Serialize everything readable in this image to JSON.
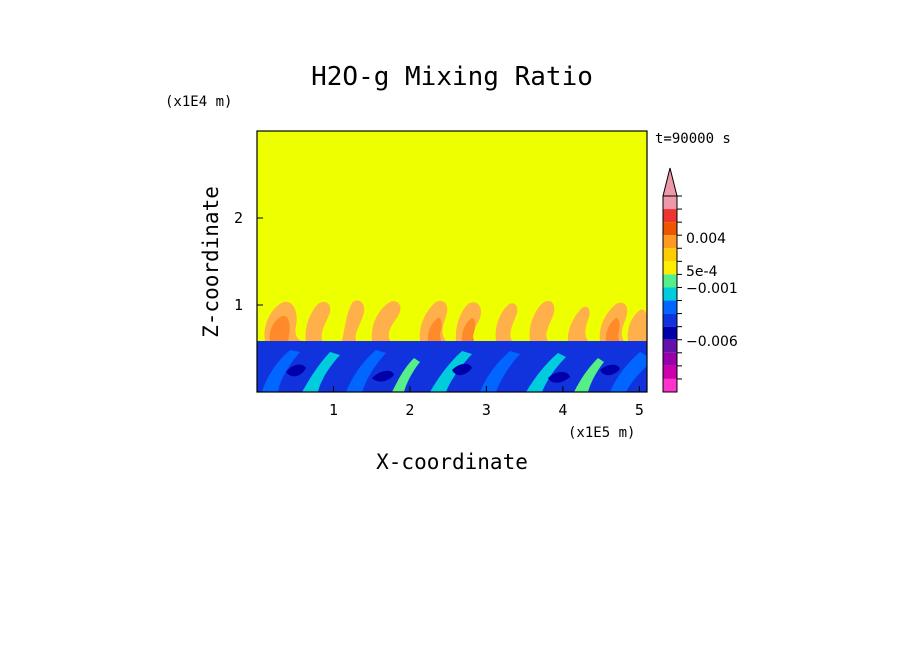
{
  "chart_data": {
    "type": "heatmap",
    "title": "H2O-g Mixing Ratio",
    "xlabel": "X-coordinate",
    "ylabel": "Z-coordinate",
    "x_scale_label": "(x1E5 m)",
    "y_scale_label": "(x1E4 m)",
    "time_label": "t=90000 s",
    "xlim": [
      0,
      5.1
    ],
    "ylim": [
      0,
      3
    ],
    "x_ticks": [
      {
        "value": 1,
        "label": "1"
      },
      {
        "value": 2,
        "label": "2"
      },
      {
        "value": 3,
        "label": "3"
      },
      {
        "value": 4,
        "label": "4"
      },
      {
        "value": 5,
        "label": "5"
      }
    ],
    "y_ticks": [
      {
        "value": 1,
        "label": "1"
      },
      {
        "value": 2,
        "label": "2"
      }
    ],
    "field_regions": [
      {
        "name": "upper",
        "z_range": [
          1.05,
          3
        ],
        "value": "0",
        "color": "#eeff00"
      },
      {
        "name": "plume-layer",
        "z_range": [
          0.6,
          1.05
        ],
        "value": "5e-4 to 0.004",
        "color": "#ff9a2e"
      },
      {
        "name": "boundary-layer",
        "z_range": [
          0,
          0.6
        ],
        "value": "-0.006 to -0.001",
        "color": "#1133dd"
      }
    ],
    "colorbar": {
      "extend": "max",
      "colors": [
        "#ee99aa",
        "#ee3333",
        "#ee5500",
        "#ff9922",
        "#ffcc00",
        "#ffee00",
        "#55ee88",
        "#00ccdd",
        "#0066ff",
        "#1133dd",
        "#0000aa",
        "#6611aa",
        "#9900aa",
        "#cc00aa",
        "#ff33cc"
      ],
      "labels": [
        {
          "text": "0.004",
          "level": 0.004
        },
        {
          "text": "5e-4",
          "level": 0.0005
        },
        {
          "text": "−0.001",
          "level": -0.001
        },
        {
          "text": "−0.006",
          "level": -0.006
        }
      ]
    }
  }
}
